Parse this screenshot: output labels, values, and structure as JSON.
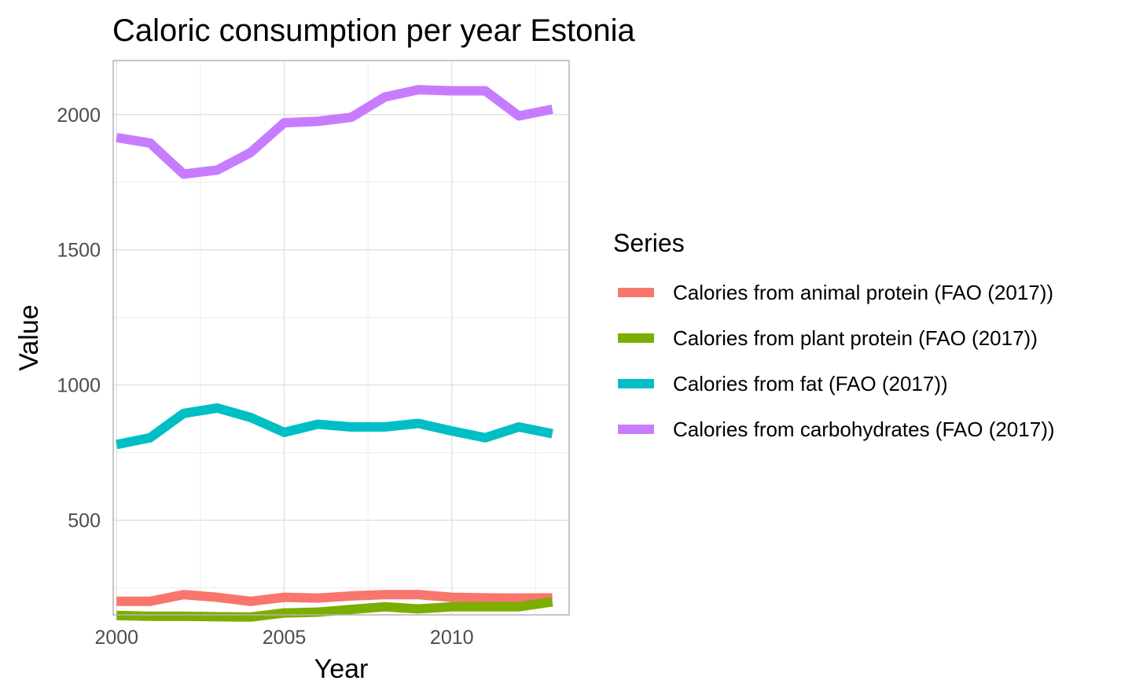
{
  "chart_data": {
    "type": "line",
    "title": "Caloric consumption per year Estonia",
    "xlabel": "Year",
    "ylabel": "Value",
    "xlim": [
      1999.9,
      2013.5
    ],
    "ylim": [
      150,
      2200
    ],
    "xticks": [
      2000,
      2005,
      2010
    ],
    "yticks": [
      500,
      1000,
      1500,
      2000
    ],
    "grid": true,
    "legend_position": "right",
    "legend_title": "Series",
    "x": [
      2000,
      2001,
      2002,
      2003,
      2004,
      2005,
      2006,
      2007,
      2008,
      2009,
      2010,
      2011,
      2012,
      2013
    ],
    "series": [
      {
        "name": "Calories from animal protein (FAO (2017))",
        "color": "#F8766D",
        "values": [
          200,
          200,
          225,
          215,
          200,
          215,
          212,
          220,
          225,
          225,
          215,
          213,
          212,
          213
        ]
      },
      {
        "name": "Calories from plant protein (FAO (2017))",
        "color": "#7CAE00",
        "values": [
          148,
          145,
          145,
          143,
          142,
          157,
          160,
          170,
          180,
          172,
          180,
          180,
          180,
          198
        ]
      },
      {
        "name": "Calories from fat (FAO (2017))",
        "color": "#00BFC4",
        "values": [
          780,
          805,
          895,
          915,
          880,
          825,
          855,
          845,
          845,
          858,
          830,
          805,
          845,
          820
        ]
      },
      {
        "name": "Calories from carbohydrates (FAO (2017))",
        "color": "#C77CFF",
        "values": [
          1915,
          1895,
          1780,
          1795,
          1860,
          1970,
          1975,
          1990,
          2065,
          2092,
          2088,
          2088,
          1995,
          2020
        ]
      }
    ]
  }
}
